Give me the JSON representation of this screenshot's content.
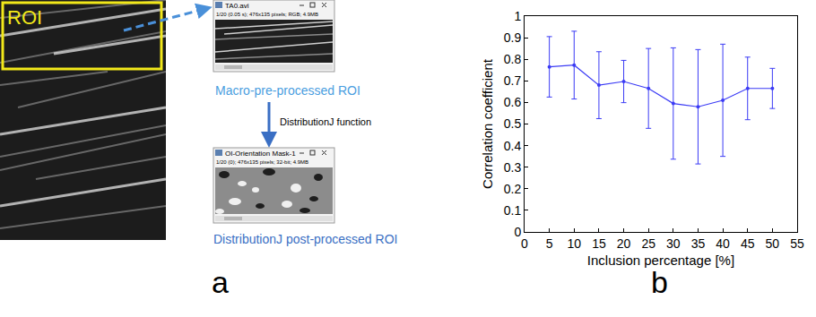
{
  "panel_labels": [
    "a",
    "b"
  ],
  "diagram": {
    "roi_label": "ROI",
    "step_label": "DistributionJ function",
    "windows": [
      {
        "title": "TA0.avi",
        "info": "1/20 (0.05 s); 476x135 pixels; RGB; 4.9MB",
        "caption": "Macro-pre-processed ROI"
      },
      {
        "title": "OI-Orientation Mask-1",
        "info": "1/20 (0); 476x135 pixels; 32-bit; 4.9MB",
        "caption": "DistributionJ post-processed ROI"
      }
    ]
  },
  "chart_data": {
    "type": "line",
    "x": [
      5,
      10,
      15,
      20,
      25,
      30,
      35,
      40,
      45,
      50
    ],
    "values": [
      0.765,
      0.773,
      0.68,
      0.697,
      0.665,
      0.595,
      0.58,
      0.61,
      0.665,
      0.665
    ],
    "errors": [
      0.14,
      0.157,
      0.155,
      0.098,
      0.185,
      0.258,
      0.265,
      0.26,
      0.145,
      0.093
    ],
    "color": "#3b3bf5",
    "marker": "circle",
    "x_label": "Inclusion percentage [%]",
    "y_label": "Correlation coefficient",
    "xlim": [
      0,
      55
    ],
    "xticks": [
      0,
      5,
      10,
      15,
      20,
      25,
      30,
      35,
      40,
      45,
      50,
      55
    ],
    "ylim": [
      0,
      1
    ],
    "yticks": [
      0,
      0.1,
      0.2,
      0.3,
      0.4,
      0.5,
      0.6,
      0.7,
      0.8,
      0.9,
      1
    ],
    "grid": false
  }
}
